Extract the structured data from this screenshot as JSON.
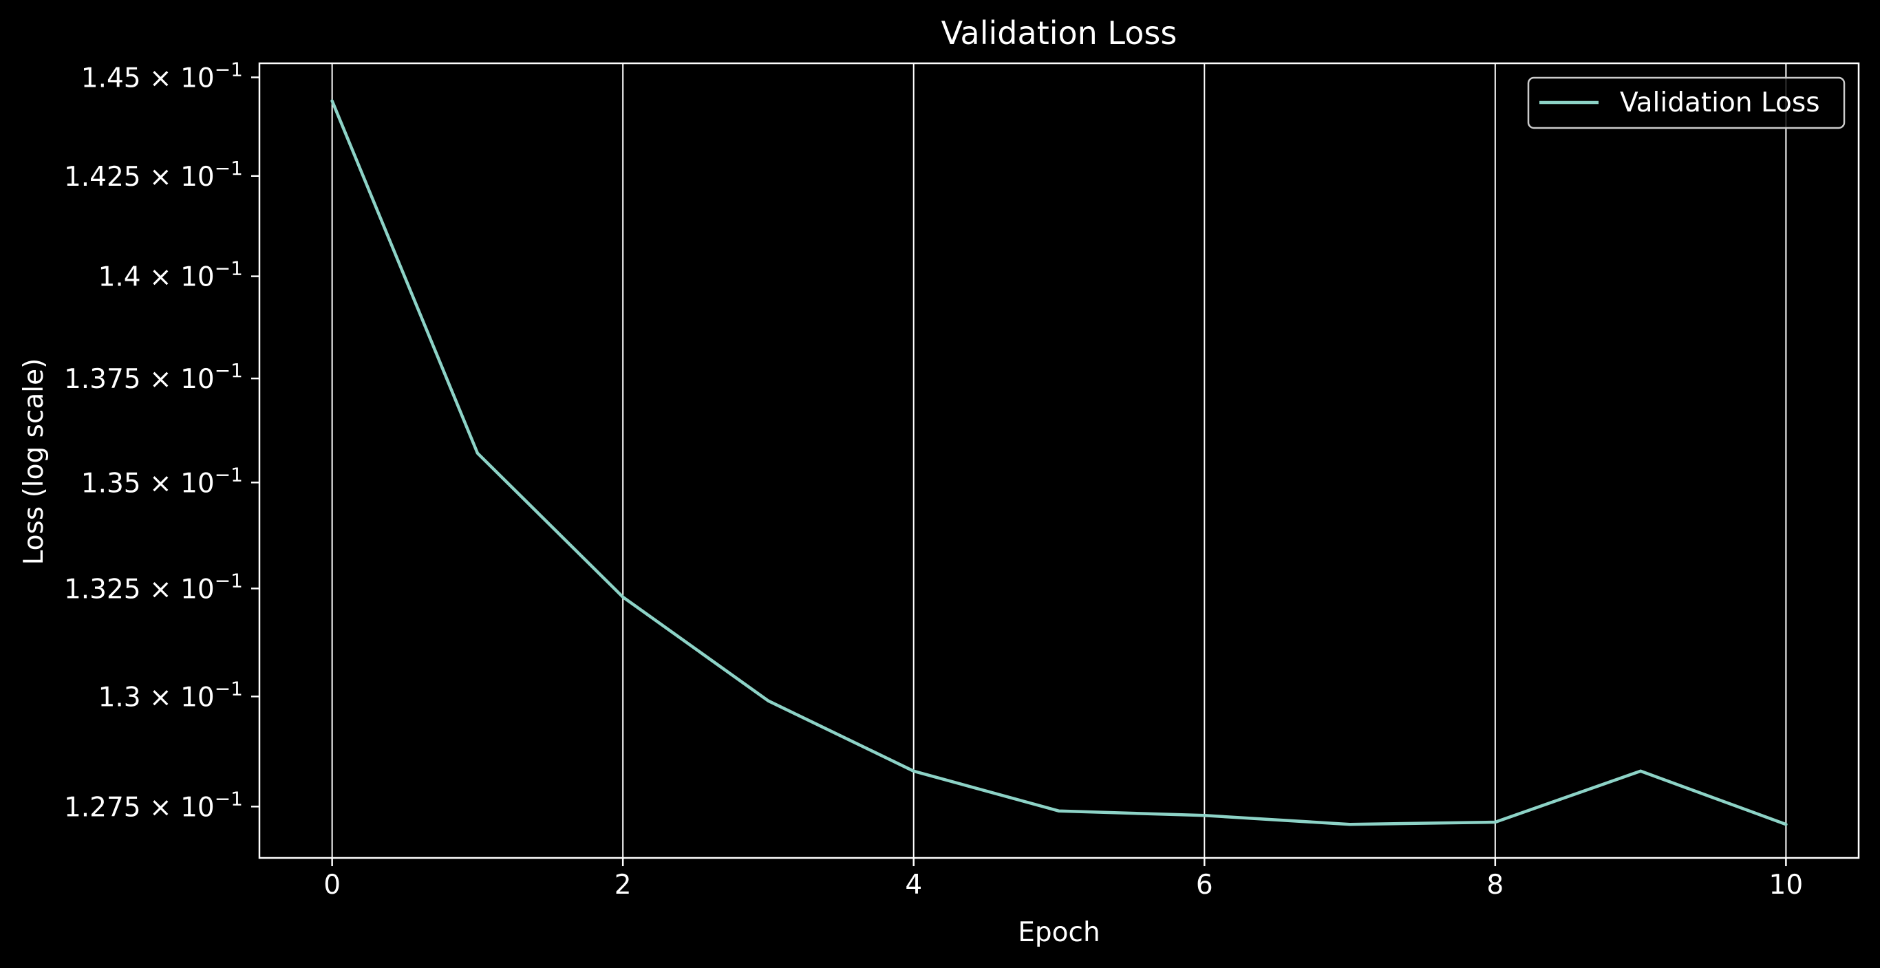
{
  "chart_data": {
    "type": "line",
    "title": "Validation Loss",
    "xlabel": "Epoch",
    "ylabel": "Loss (log scale)",
    "y_scale": "log",
    "xlim": [
      -0.5,
      10.5
    ],
    "ylim": [
      0.12635,
      0.14536
    ],
    "x_ticks": [
      0,
      2,
      4,
      6,
      8,
      10
    ],
    "x_tick_labels": [
      "0",
      "2",
      "4",
      "6",
      "8",
      "10"
    ],
    "y_ticks": [
      {
        "value": 0.1275,
        "mantissa": "1.275",
        "exp": "−1"
      },
      {
        "value": 0.13,
        "mantissa": "1.3",
        "exp": "−1"
      },
      {
        "value": 0.1325,
        "mantissa": "1.325",
        "exp": "−1"
      },
      {
        "value": 0.135,
        "mantissa": "1.35",
        "exp": "−1"
      },
      {
        "value": 0.1375,
        "mantissa": "1.375",
        "exp": "−1"
      },
      {
        "value": 0.14,
        "mantissa": "1.4",
        "exp": "−1"
      },
      {
        "value": 0.1425,
        "mantissa": "1.425",
        "exp": "−1"
      },
      {
        "value": 0.145,
        "mantissa": "1.45",
        "exp": "−1"
      }
    ],
    "grid": "x-major",
    "legend_position": "top-right",
    "series": [
      {
        "name": "Validation Loss",
        "color": "#8dd3c7",
        "x": [
          0,
          1,
          2,
          3,
          4,
          5,
          6,
          7,
          8,
          9,
          10
        ],
        "y": [
          0.1444,
          0.1357,
          0.1323,
          0.1299,
          0.1283,
          0.1274,
          0.1273,
          0.1271,
          0.12715,
          0.1283,
          0.1271
        ]
      }
    ],
    "colors": {
      "background": "#000000",
      "foreground": "#ffffff",
      "grid": "#ffffff"
    }
  }
}
